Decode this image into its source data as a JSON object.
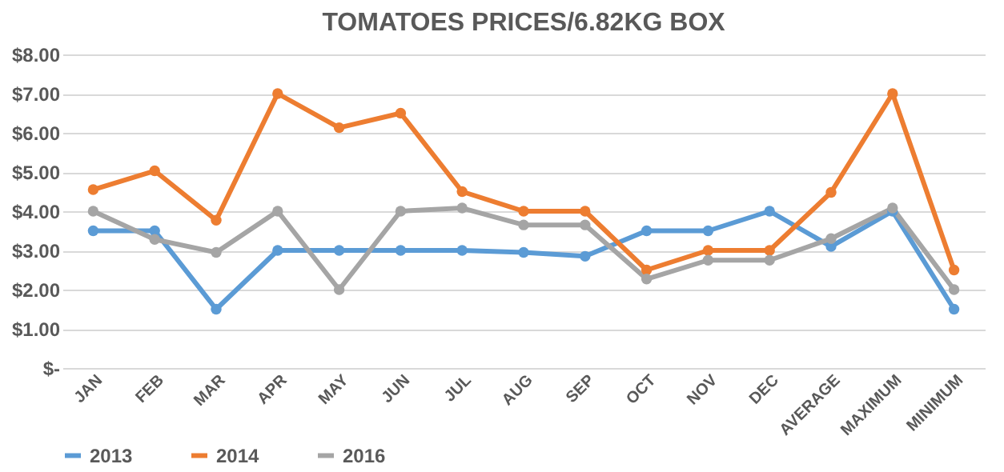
{
  "chart_data": {
    "type": "line",
    "title": "TOMATOES PRICES/6.82KG BOX",
    "categories": [
      "JAN",
      "FEB",
      "MAR",
      "APR",
      "MAY",
      "JUN",
      "JUL",
      "AUG",
      "SEP",
      "OCT",
      "NOV",
      "DEC",
      "AVERAGE",
      "MAXIMUM",
      "MINIMUM"
    ],
    "series": [
      {
        "name": "2013",
        "color": "#5b9bd5",
        "values": [
          3.5,
          3.5,
          1.5,
          3,
          3,
          3,
          3,
          2.95,
          2.85,
          3.5,
          3.5,
          4,
          3.1,
          4,
          1.5
        ]
      },
      {
        "name": "2014",
        "color": "#ed7d31",
        "values": [
          4.55,
          5.03,
          3.77,
          7,
          6.13,
          6.5,
          4.5,
          4,
          4,
          2.5,
          3,
          3,
          4.48,
          7,
          2.5
        ]
      },
      {
        "name": "2016",
        "color": "#a5a5a5",
        "values": [
          4,
          3.28,
          2.95,
          4,
          2,
          4,
          4.08,
          3.65,
          3.65,
          2.27,
          2.75,
          2.75,
          3.3,
          4.08,
          2
        ]
      }
    ],
    "ylim": [
      0,
      8
    ],
    "yticks": [
      {
        "value": 0,
        "label": "$-"
      },
      {
        "value": 1,
        "label": "$1.00"
      },
      {
        "value": 2,
        "label": "$2.00"
      },
      {
        "value": 3,
        "label": "$3.00"
      },
      {
        "value": 4,
        "label": "$4.00"
      },
      {
        "value": 5,
        "label": "$5.00"
      },
      {
        "value": 6,
        "label": "$6.00"
      },
      {
        "value": 7,
        "label": "$7.00"
      },
      {
        "value": 8,
        "label": "$8.00"
      }
    ],
    "grid": "y",
    "legend": "bottom",
    "marker": "circle",
    "line_style": "solid"
  }
}
